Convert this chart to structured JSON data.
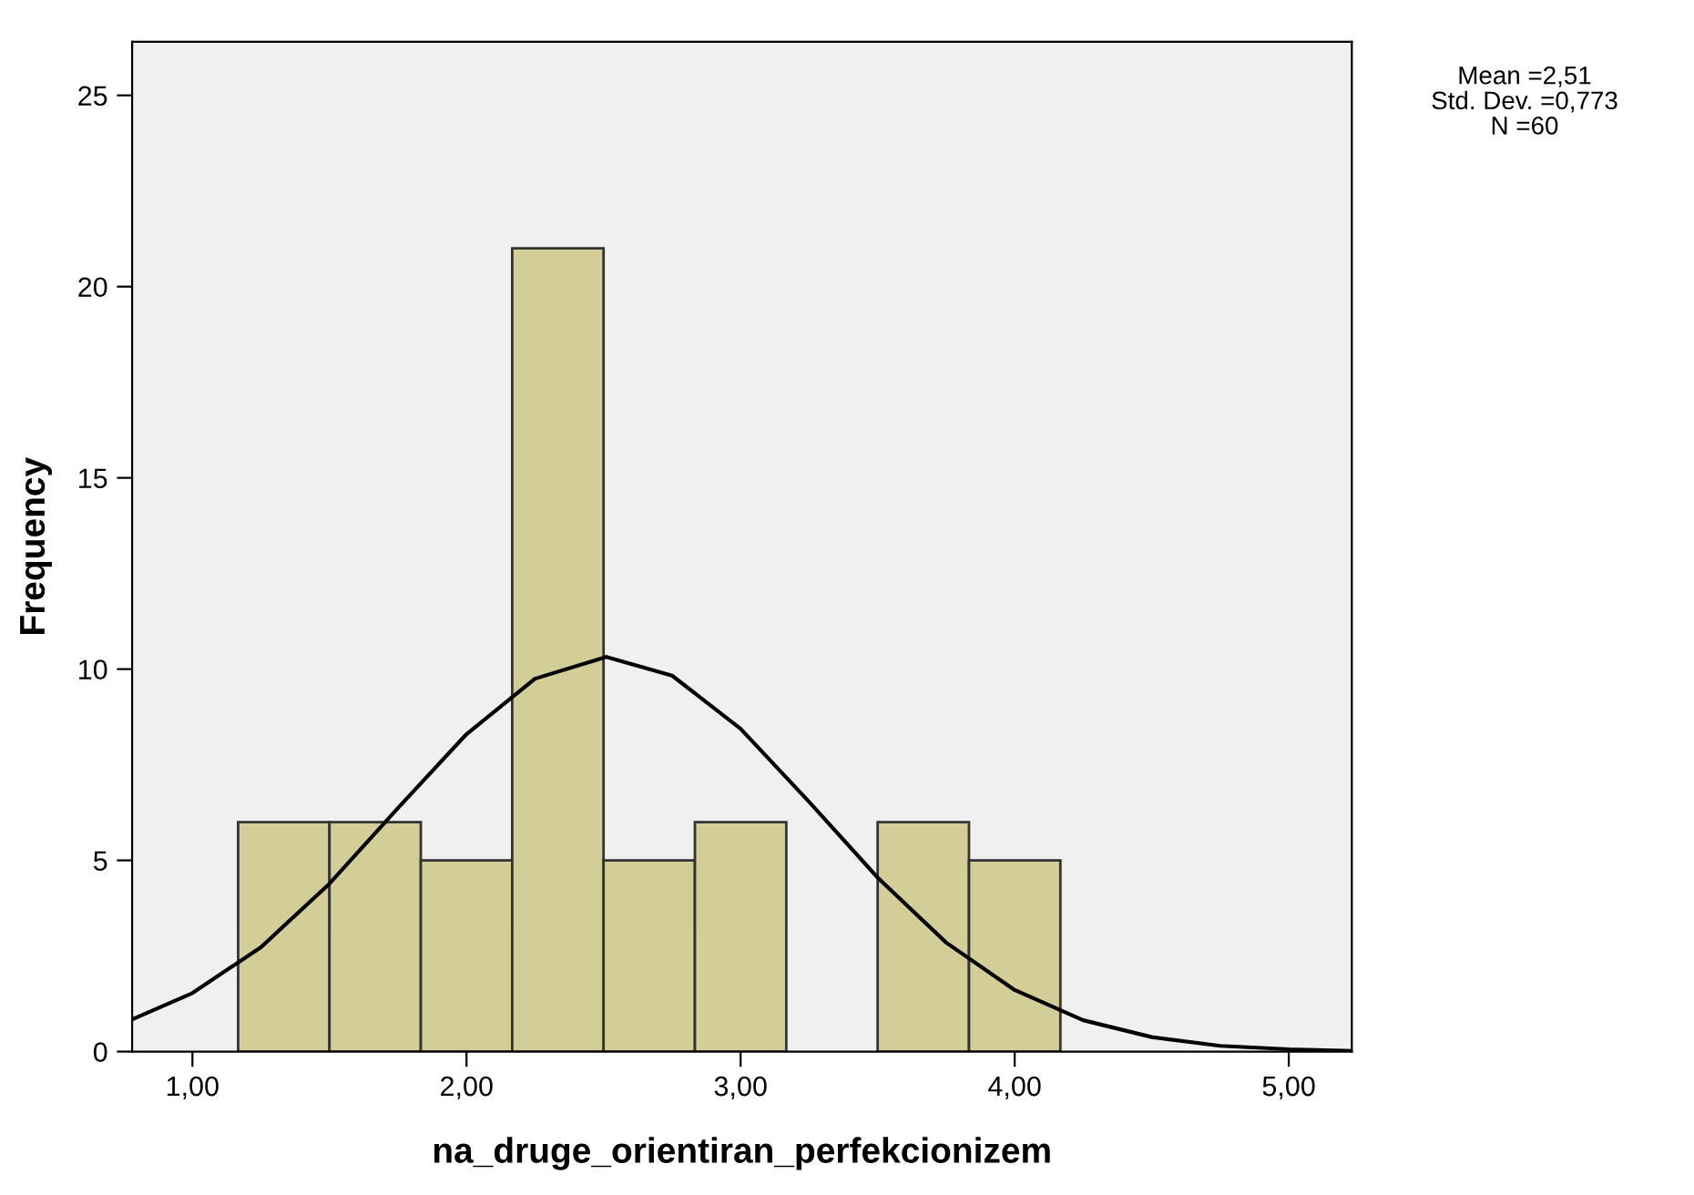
{
  "chart_data": {
    "type": "histogram",
    "xlabel": "na_druge_orientiran_perfekcionizem",
    "ylabel": "Frequency",
    "bins": [
      1.1667,
      1.5,
      1.8333,
      2.1667,
      2.5,
      2.8333,
      3.1667,
      3.5,
      3.8333,
      4.1667
    ],
    "values": [
      6,
      6,
      5,
      21,
      5,
      6,
      0,
      6,
      5
    ],
    "color": "#d3ce97",
    "series": [
      {
        "type": "line",
        "color": "#000000",
        "x": [
          0.78,
          1.0,
          1.25,
          1.5,
          1.75,
          2.0,
          2.25,
          2.51,
          2.75,
          3.0,
          3.25,
          3.5,
          3.75,
          4.0,
          4.25,
          4.5,
          4.75,
          5.0,
          5.23
        ],
        "values": [
          0.84,
          1.53,
          2.73,
          4.39,
          6.37,
          8.3,
          9.75,
          10.32,
          9.83,
          8.44,
          6.53,
          4.55,
          2.85,
          1.61,
          0.82,
          0.38,
          0.15,
          0.06,
          0.02
        ]
      }
    ],
    "xlim": [
      0.78,
      5.23
    ],
    "xticks": [
      {
        "value": 1,
        "label": "1,00"
      },
      {
        "value": 2,
        "label": "2,00"
      },
      {
        "value": 3,
        "label": "3,00"
      },
      {
        "value": 4,
        "label": "4,00"
      },
      {
        "value": 5,
        "label": "5,00"
      }
    ],
    "ylim": [
      0,
      26.4
    ],
    "yticks": [
      0,
      5,
      10,
      15,
      20,
      25
    ],
    "grid": false,
    "annotations": [
      "Mean =2,51",
      "Std. Dev. =0,773",
      "N =60"
    ]
  }
}
